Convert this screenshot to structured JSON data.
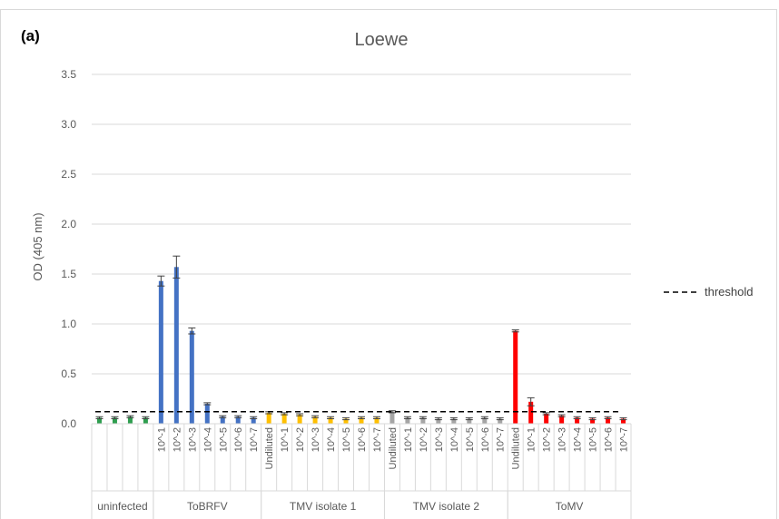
{
  "panel_label": "(a)",
  "chart_data": {
    "type": "bar",
    "title": "Loewe",
    "xlabel": "",
    "ylabel": "OD (405 nm)",
    "ylim": [
      0,
      3.5
    ],
    "yticks": [
      "0.0",
      "0.5",
      "1.0",
      "1.5",
      "2.0",
      "2.5",
      "3.0",
      "3.5"
    ],
    "grid": true,
    "legend": {
      "position": "right",
      "entries": [
        {
          "name": "threshold",
          "style": "dashed"
        }
      ]
    },
    "threshold": 0.12,
    "groups": [
      {
        "name": "uninfected",
        "color": "#2e9e4f",
        "categories": [
          "",
          "",
          "",
          ""
        ],
        "values": [
          0.06,
          0.06,
          0.07,
          0.06
        ],
        "errors": [
          0.01,
          0.01,
          0.01,
          0.01
        ]
      },
      {
        "name": "ToBRFV",
        "color": "#4472c4",
        "categories": [
          "10^-1",
          "10^-2",
          "10^-3",
          "10^-4",
          "10^-5",
          "10^-6",
          "10^-7"
        ],
        "values": [
          1.43,
          1.57,
          0.93,
          0.2,
          0.07,
          0.07,
          0.06
        ],
        "errors": [
          0.05,
          0.11,
          0.03,
          0.01,
          0.01,
          0.01,
          0.01
        ]
      },
      {
        "name": "TMV isolate 1",
        "color": "#ffc000",
        "categories": [
          "Undiluted",
          "10^-1",
          "10^-2",
          "10^-3",
          "10^-4",
          "10^-5",
          "10^-6",
          "10^-7"
        ],
        "values": [
          0.11,
          0.1,
          0.09,
          0.07,
          0.06,
          0.05,
          0.06,
          0.06
        ],
        "errors": [
          0.01,
          0.01,
          0.01,
          0.01,
          0.01,
          0.01,
          0.01,
          0.01
        ]
      },
      {
        "name": "TMV isolate 2",
        "color": "#a5a5a5",
        "categories": [
          "Undiluted",
          "10^-1",
          "10^-2",
          "10^-3",
          "10^-4",
          "10^-5",
          "10^-6",
          "10^-7"
        ],
        "values": [
          0.12,
          0.06,
          0.06,
          0.05,
          0.05,
          0.05,
          0.06,
          0.05
        ],
        "errors": [
          0.01,
          0.01,
          0.01,
          0.01,
          0.01,
          0.01,
          0.01,
          0.01
        ]
      },
      {
        "name": "ToMV",
        "color": "#ff0000",
        "categories": [
          "Undiluted",
          "10^-1",
          "10^-2",
          "10^-3",
          "10^-4",
          "10^-5",
          "10^-6",
          "10^-7"
        ],
        "values": [
          0.93,
          0.22,
          0.1,
          0.08,
          0.06,
          0.05,
          0.06,
          0.05
        ],
        "errors": [
          0.01,
          0.04,
          0.01,
          0.01,
          0.01,
          0.01,
          0.01,
          0.01
        ]
      }
    ]
  }
}
